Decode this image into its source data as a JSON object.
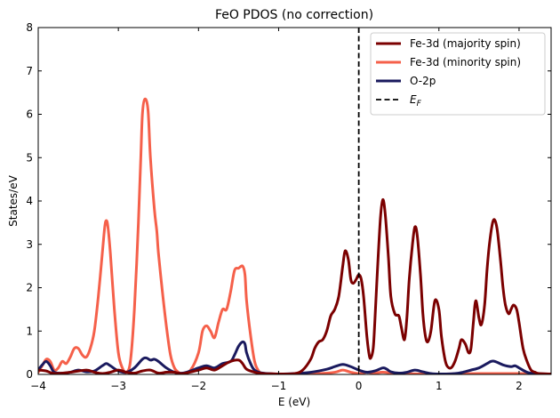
{
  "chart_data": {
    "type": "line",
    "title": "FeO PDOS (no correction)",
    "xlabel": "E (eV)",
    "ylabel": "States/eV",
    "xlim": [
      -4,
      2.4
    ],
    "ylim": [
      0,
      8
    ],
    "xticks": [
      -4,
      -3,
      -2,
      -1,
      0,
      1,
      2
    ],
    "xtick_labels": [
      "−4",
      "−3",
      "−2",
      "−1",
      "0",
      "1",
      "2"
    ],
    "yticks": [
      0,
      1,
      2,
      3,
      4,
      5,
      6,
      7,
      8
    ],
    "ytick_labels": [
      "0",
      "1",
      "2",
      "3",
      "4",
      "5",
      "6",
      "7",
      "8"
    ],
    "grid": false,
    "legend_position": "top-right",
    "fermi_level": 0,
    "series": [
      {
        "name": "Fe-3d (majority spin)",
        "color": "#7b0000",
        "points": [
          [
            -4.0,
            0.1
          ],
          [
            -3.9,
            0.08
          ],
          [
            -3.8,
            0.02
          ],
          [
            -3.6,
            0.05
          ],
          [
            -3.4,
            0.1
          ],
          [
            -3.3,
            0.05
          ],
          [
            -3.2,
            0.02
          ],
          [
            -3.1,
            0.05
          ],
          [
            -3.0,
            0.1
          ],
          [
            -2.9,
            0.05
          ],
          [
            -2.8,
            0.03
          ],
          [
            -2.7,
            0.08
          ],
          [
            -2.6,
            0.1
          ],
          [
            -2.5,
            0.03
          ],
          [
            -2.4,
            0.05
          ],
          [
            -2.3,
            0.05
          ],
          [
            -2.2,
            0.02
          ],
          [
            -2.0,
            0.1
          ],
          [
            -1.9,
            0.15
          ],
          [
            -1.8,
            0.1
          ],
          [
            -1.7,
            0.2
          ],
          [
            -1.6,
            0.3
          ],
          [
            -1.5,
            0.33
          ],
          [
            -1.45,
            0.25
          ],
          [
            -1.4,
            0.12
          ],
          [
            -1.3,
            0.05
          ],
          [
            -1.2,
            0.02
          ],
          [
            -1.0,
            0.01
          ],
          [
            -0.8,
            0.02
          ],
          [
            -0.7,
            0.1
          ],
          [
            -0.6,
            0.35
          ],
          [
            -0.55,
            0.6
          ],
          [
            -0.5,
            0.75
          ],
          [
            -0.45,
            0.8
          ],
          [
            -0.4,
            1.0
          ],
          [
            -0.35,
            1.35
          ],
          [
            -0.3,
            1.5
          ],
          [
            -0.25,
            1.8
          ],
          [
            -0.2,
            2.5
          ],
          [
            -0.17,
            2.85
          ],
          [
            -0.13,
            2.65
          ],
          [
            -0.1,
            2.2
          ],
          [
            -0.07,
            2.1
          ],
          [
            -0.03,
            2.2
          ],
          [
            0.0,
            2.3
          ],
          [
            0.03,
            2.2
          ],
          [
            0.06,
            1.8
          ],
          [
            0.1,
            0.9
          ],
          [
            0.13,
            0.45
          ],
          [
            0.15,
            0.38
          ],
          [
            0.18,
            0.6
          ],
          [
            0.2,
            1.2
          ],
          [
            0.23,
            2.3
          ],
          [
            0.27,
            3.6
          ],
          [
            0.3,
            4.03
          ],
          [
            0.33,
            3.7
          ],
          [
            0.37,
            2.7
          ],
          [
            0.4,
            1.8
          ],
          [
            0.45,
            1.4
          ],
          [
            0.5,
            1.35
          ],
          [
            0.53,
            1.1
          ],
          [
            0.57,
            0.8
          ],
          [
            0.6,
            1.3
          ],
          [
            0.63,
            2.2
          ],
          [
            0.67,
            3.0
          ],
          [
            0.7,
            3.4
          ],
          [
            0.73,
            3.2
          ],
          [
            0.77,
            2.3
          ],
          [
            0.8,
            1.4
          ],
          [
            0.83,
            0.9
          ],
          [
            0.86,
            0.75
          ],
          [
            0.9,
            1.0
          ],
          [
            0.95,
            1.7
          ],
          [
            1.0,
            1.5
          ],
          [
            1.03,
            0.9
          ],
          [
            1.07,
            0.4
          ],
          [
            1.1,
            0.2
          ],
          [
            1.15,
            0.15
          ],
          [
            1.2,
            0.3
          ],
          [
            1.25,
            0.6
          ],
          [
            1.28,
            0.8
          ],
          [
            1.33,
            0.7
          ],
          [
            1.37,
            0.5
          ],
          [
            1.4,
            0.6
          ],
          [
            1.43,
            1.2
          ],
          [
            1.46,
            1.7
          ],
          [
            1.5,
            1.3
          ],
          [
            1.53,
            1.15
          ],
          [
            1.57,
            1.6
          ],
          [
            1.6,
            2.4
          ],
          [
            1.63,
            3.0
          ],
          [
            1.67,
            3.5
          ],
          [
            1.7,
            3.55
          ],
          [
            1.73,
            3.3
          ],
          [
            1.77,
            2.6
          ],
          [
            1.8,
            2.0
          ],
          [
            1.83,
            1.6
          ],
          [
            1.87,
            1.4
          ],
          [
            1.9,
            1.5
          ],
          [
            1.93,
            1.6
          ],
          [
            1.97,
            1.5
          ],
          [
            2.0,
            1.2
          ],
          [
            2.05,
            0.6
          ],
          [
            2.1,
            0.3
          ],
          [
            2.15,
            0.1
          ],
          [
            2.2,
            0.05
          ],
          [
            2.25,
            0.02
          ],
          [
            2.4,
            0.01
          ]
        ]
      },
      {
        "name": "Fe-3d (minority spin)",
        "color": "#f5604a",
        "points": [
          [
            -4.0,
            0.05
          ],
          [
            -3.95,
            0.2
          ],
          [
            -3.9,
            0.35
          ],
          [
            -3.85,
            0.3
          ],
          [
            -3.8,
            0.1
          ],
          [
            -3.75,
            0.15
          ],
          [
            -3.7,
            0.3
          ],
          [
            -3.65,
            0.25
          ],
          [
            -3.6,
            0.4
          ],
          [
            -3.55,
            0.6
          ],
          [
            -3.5,
            0.6
          ],
          [
            -3.45,
            0.45
          ],
          [
            -3.4,
            0.4
          ],
          [
            -3.35,
            0.6
          ],
          [
            -3.3,
            1.0
          ],
          [
            -3.25,
            1.8
          ],
          [
            -3.2,
            2.8
          ],
          [
            -3.17,
            3.4
          ],
          [
            -3.15,
            3.55
          ],
          [
            -3.13,
            3.4
          ],
          [
            -3.1,
            2.8
          ],
          [
            -3.05,
            1.5
          ],
          [
            -3.0,
            0.5
          ],
          [
            -2.95,
            0.15
          ],
          [
            -2.9,
            0.05
          ],
          [
            -2.85,
            0.3
          ],
          [
            -2.8,
            1.5
          ],
          [
            -2.75,
            3.5
          ],
          [
            -2.72,
            5.0
          ],
          [
            -2.7,
            6.0
          ],
          [
            -2.67,
            6.35
          ],
          [
            -2.63,
            6.1
          ],
          [
            -2.6,
            5.0
          ],
          [
            -2.55,
            3.8
          ],
          [
            -2.52,
            3.3
          ],
          [
            -2.5,
            2.8
          ],
          [
            -2.45,
            1.9
          ],
          [
            -2.4,
            1.1
          ],
          [
            -2.35,
            0.45
          ],
          [
            -2.3,
            0.15
          ],
          [
            -2.25,
            0.05
          ],
          [
            -2.2,
            0.02
          ],
          [
            -2.1,
            0.1
          ],
          [
            -2.0,
            0.5
          ],
          [
            -1.95,
            1.0
          ],
          [
            -1.9,
            1.12
          ],
          [
            -1.85,
            1.0
          ],
          [
            -1.8,
            0.85
          ],
          [
            -1.75,
            1.2
          ],
          [
            -1.7,
            1.5
          ],
          [
            -1.65,
            1.5
          ],
          [
            -1.6,
            1.9
          ],
          [
            -1.55,
            2.4
          ],
          [
            -1.5,
            2.45
          ],
          [
            -1.45,
            2.5
          ],
          [
            -1.42,
            2.3
          ],
          [
            -1.4,
            1.7
          ],
          [
            -1.35,
            0.9
          ],
          [
            -1.3,
            0.3
          ],
          [
            -1.25,
            0.08
          ],
          [
            -1.2,
            0.02
          ],
          [
            -1.1,
            0.02
          ],
          [
            -1.0,
            0.01
          ],
          [
            -0.8,
            0.01
          ],
          [
            -0.5,
            0.02
          ],
          [
            -0.3,
            0.05
          ],
          [
            -0.2,
            0.1
          ],
          [
            -0.1,
            0.05
          ],
          [
            0.0,
            0.02
          ],
          [
            0.1,
            0.05
          ],
          [
            0.2,
            0.03
          ],
          [
            0.3,
            0.05
          ],
          [
            0.5,
            0.02
          ],
          [
            1.0,
            0.01
          ],
          [
            1.5,
            0.02
          ],
          [
            2.0,
            0.02
          ],
          [
            2.4,
            0.01
          ]
        ]
      },
      {
        "name": "O-2p",
        "color": "#1a1a5e",
        "points": [
          [
            -4.0,
            0.1
          ],
          [
            -3.95,
            0.22
          ],
          [
            -3.9,
            0.3
          ],
          [
            -3.85,
            0.2
          ],
          [
            -3.8,
            0.05
          ],
          [
            -3.7,
            0.03
          ],
          [
            -3.6,
            0.05
          ],
          [
            -3.5,
            0.1
          ],
          [
            -3.4,
            0.06
          ],
          [
            -3.3,
            0.08
          ],
          [
            -3.2,
            0.2
          ],
          [
            -3.15,
            0.25
          ],
          [
            -3.1,
            0.2
          ],
          [
            -3.0,
            0.08
          ],
          [
            -2.9,
            0.05
          ],
          [
            -2.8,
            0.15
          ],
          [
            -2.7,
            0.35
          ],
          [
            -2.65,
            0.38
          ],
          [
            -2.6,
            0.33
          ],
          [
            -2.55,
            0.35
          ],
          [
            -2.5,
            0.3
          ],
          [
            -2.4,
            0.15
          ],
          [
            -2.3,
            0.05
          ],
          [
            -2.2,
            0.03
          ],
          [
            -2.1,
            0.08
          ],
          [
            -2.0,
            0.15
          ],
          [
            -1.9,
            0.2
          ],
          [
            -1.8,
            0.15
          ],
          [
            -1.7,
            0.25
          ],
          [
            -1.6,
            0.3
          ],
          [
            -1.55,
            0.45
          ],
          [
            -1.5,
            0.65
          ],
          [
            -1.45,
            0.75
          ],
          [
            -1.42,
            0.7
          ],
          [
            -1.4,
            0.5
          ],
          [
            -1.35,
            0.25
          ],
          [
            -1.3,
            0.1
          ],
          [
            -1.2,
            0.03
          ],
          [
            -1.0,
            0.01
          ],
          [
            -0.8,
            0.02
          ],
          [
            -0.6,
            0.05
          ],
          [
            -0.4,
            0.12
          ],
          [
            -0.3,
            0.18
          ],
          [
            -0.2,
            0.23
          ],
          [
            -0.1,
            0.18
          ],
          [
            0.0,
            0.1
          ],
          [
            0.1,
            0.05
          ],
          [
            0.2,
            0.08
          ],
          [
            0.3,
            0.15
          ],
          [
            0.35,
            0.12
          ],
          [
            0.4,
            0.06
          ],
          [
            0.5,
            0.03
          ],
          [
            0.6,
            0.05
          ],
          [
            0.7,
            0.1
          ],
          [
            0.8,
            0.06
          ],
          [
            0.9,
            0.02
          ],
          [
            1.0,
            0.01
          ],
          [
            1.2,
            0.02
          ],
          [
            1.3,
            0.05
          ],
          [
            1.4,
            0.1
          ],
          [
            1.5,
            0.15
          ],
          [
            1.6,
            0.25
          ],
          [
            1.65,
            0.3
          ],
          [
            1.7,
            0.3
          ],
          [
            1.8,
            0.22
          ],
          [
            1.9,
            0.18
          ],
          [
            1.95,
            0.2
          ],
          [
            2.0,
            0.15
          ],
          [
            2.1,
            0.05
          ],
          [
            2.2,
            0.02
          ],
          [
            2.4,
            0.01
          ]
        ]
      }
    ],
    "legend": [
      {
        "label": "Fe-3d (majority spin)",
        "color": "#7b0000",
        "style": "solid"
      },
      {
        "label": "Fe-3d (minority spin)",
        "color": "#f5604a",
        "style": "solid"
      },
      {
        "label": "O-2p",
        "color": "#1a1a5e",
        "style": "solid"
      },
      {
        "label": "E_F",
        "color": "#000000",
        "style": "dashed"
      }
    ]
  }
}
